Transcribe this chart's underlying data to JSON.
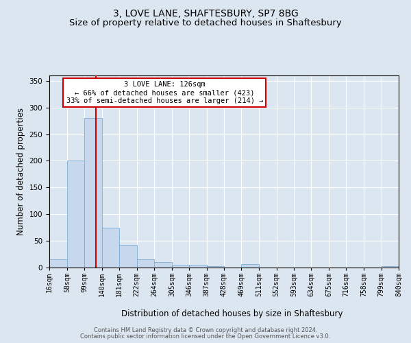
{
  "title": "3, LOVE LANE, SHAFTESBURY, SP7 8BG",
  "subtitle": "Size of property relative to detached houses in Shaftesbury",
  "xlabel": "Distribution of detached houses by size in Shaftesbury",
  "ylabel": "Number of detached properties",
  "footnote1": "Contains HM Land Registry data © Crown copyright and database right 2024.",
  "footnote2": "Contains public sector information licensed under the Open Government Licence v3.0.",
  "bin_edges": [
    16,
    58,
    99,
    140,
    181,
    222,
    264,
    305,
    346,
    387,
    428,
    469,
    511,
    552,
    593,
    634,
    675,
    716,
    758,
    799,
    840
  ],
  "bar_heights": [
    15,
    200,
    280,
    75,
    42,
    15,
    10,
    5,
    5,
    3,
    0,
    7,
    0,
    0,
    0,
    0,
    0,
    0,
    0,
    3
  ],
  "bar_color": "#c8d8ec",
  "bar_edgecolor": "#7aadd4",
  "property_size": 126,
  "vline_color": "#cc0000",
  "annotation_text": "3 LOVE LANE: 126sqm\n← 66% of detached houses are smaller (423)\n33% of semi-detached houses are larger (214) →",
  "annotation_box_edgecolor": "#cc0000",
  "annotation_box_facecolor": "#ffffff",
  "ylim": [
    0,
    360
  ],
  "yticks": [
    0,
    50,
    100,
    150,
    200,
    250,
    300,
    350
  ],
  "background_color": "#dce6f0",
  "axes_background": "#dce6f0",
  "grid_color": "#ffffff",
  "title_fontsize": 10,
  "subtitle_fontsize": 9.5,
  "tick_label_fontsize": 7,
  "ylabel_fontsize": 8.5,
  "xlabel_fontsize": 8.5,
  "footnote_fontsize": 6,
  "annotation_fontsize": 7.5
}
